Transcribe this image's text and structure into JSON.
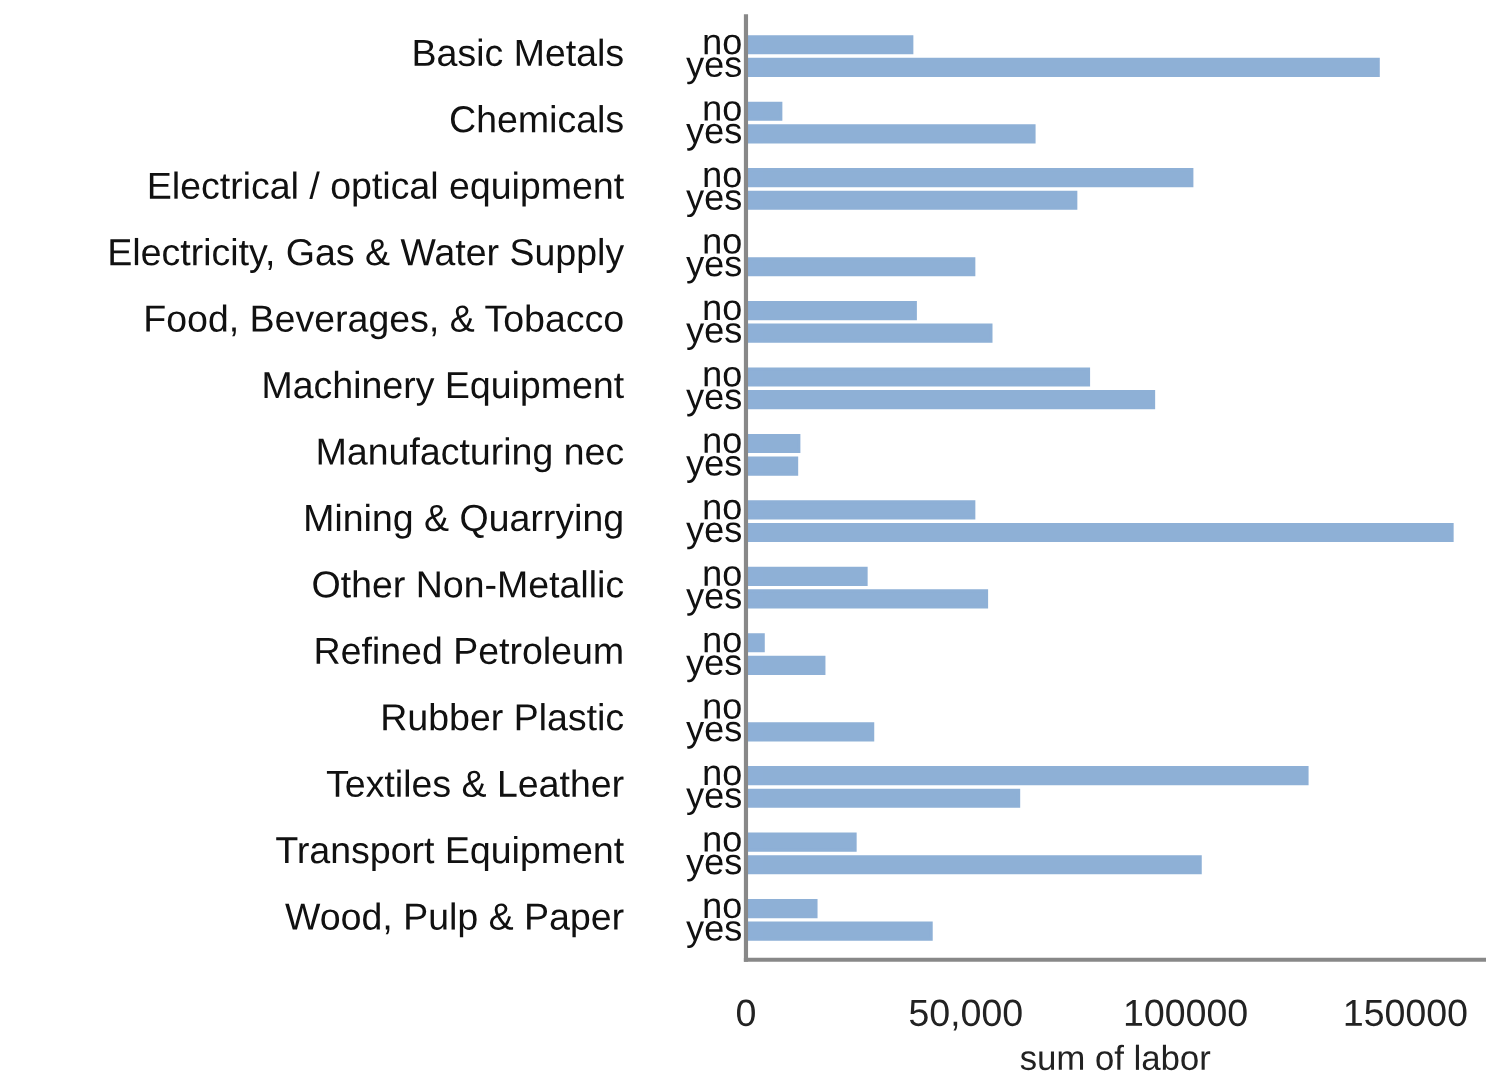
{
  "chart_data": {
    "type": "bar",
    "orientation": "horizontal",
    "xlabel": "sum of labor",
    "categories": [
      "Basic Metals",
      "Chemicals",
      "Electrical / optical equipment",
      "Electricity, Gas & Water Supply",
      "Food, Beverages, & Tobacco",
      "Machinery Equipment",
      "Manufacturing nec",
      "Mining & Quarrying",
      "Other Non-Metallic",
      "Refined Petroleum",
      "Rubber Plastic",
      "Textiles & Leather",
      "Transport Equipment",
      "Wood, Pulp & Paper"
    ],
    "series": [
      {
        "name": "no",
        "color": "#7ba3d0",
        "values": [
          37700,
          7900,
          101400,
          0,
          38500,
          77900,
          12000,
          51800,
          27300,
          3900,
          null,
          127600,
          24800,
          15900
        ]
      },
      {
        "name": "yes",
        "color": "#7ba3d0",
        "values": [
          143800,
          65500,
          75000,
          51800,
          55700,
          92700,
          11500,
          160600,
          54700,
          17700,
          28800,
          62000,
          103300,
          42100
        ]
      }
    ],
    "xlim": [
      0,
      168000
    ],
    "xticks": [
      0,
      {
        "value": 50000,
        "label": "50,000"
      },
      100000,
      150000
    ],
    "grid": false,
    "legend": false
  }
}
